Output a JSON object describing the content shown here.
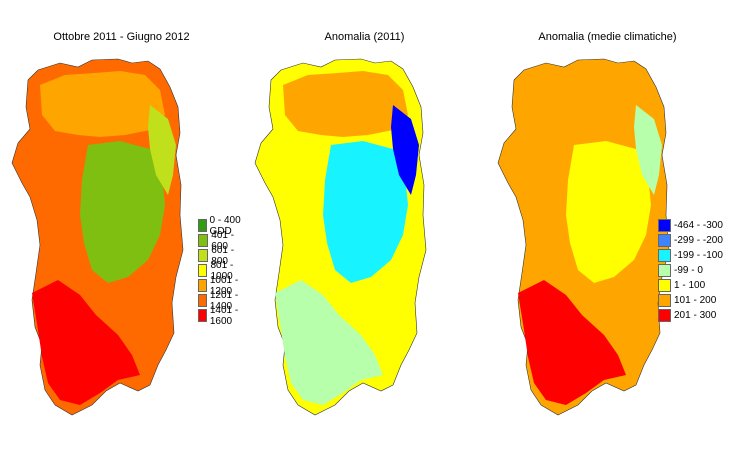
{
  "palettes": {
    "gdd": [
      "#2e9d11",
      "#7fbf12",
      "#bfe01a",
      "#ffff00",
      "#ffa500",
      "#ff6a00",
      "#ff0000"
    ],
    "anomaly": [
      "#0000ff",
      "#3f84ff",
      "#18f4ff",
      "#b7ffaa",
      "#ffff00",
      "#ffa500",
      "#ff0000"
    ]
  },
  "panels": [
    {
      "title": "Ottobre 2011  - Giugno 2012",
      "legend": [
        "0 -  400 GDD",
        "401 - 600",
        "601 - 800",
        "801 - 1000",
        "1001 - 1200",
        "1201 - 1400",
        "1401 - 1600"
      ],
      "palette": "gdd",
      "classes": [
        5,
        4,
        1,
        2,
        6
      ]
    },
    {
      "title": "Anomalia (2011)",
      "legend": [],
      "palette": "anomaly",
      "classes": [
        4,
        5,
        2,
        0,
        3
      ]
    },
    {
      "title": "Anomalia (medie climatiche)",
      "legend": [
        "-464 - -300",
        "-299 - -200",
        "-199 - -100",
        "-99 - 0",
        "1 - 100",
        "101 - 200",
        "201 - 300"
      ],
      "palette": "anomaly",
      "classes": [
        5,
        5,
        4,
        3,
        6
      ]
    }
  ]
}
